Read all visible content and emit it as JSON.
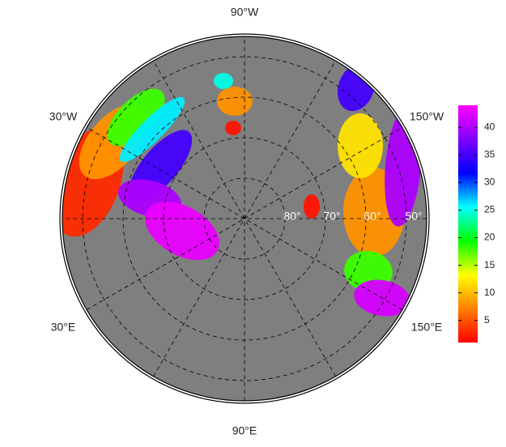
{
  "map": {
    "longitude_labels": [
      "90°W",
      "30°W",
      "150°W",
      "30°E",
      "150°E",
      "90°E"
    ],
    "latitude_labels": [
      "80°",
      "70°",
      "60°",
      "50°"
    ],
    "land_color": "#7f7f7f",
    "field_values": [
      3,
      8,
      18,
      26,
      35,
      40,
      43,
      8,
      12,
      40,
      35,
      18,
      42,
      2,
      8,
      2,
      25
    ],
    "colorbar": {
      "lim": [
        1,
        44
      ],
      "ticks": [
        5,
        10,
        15,
        20,
        25,
        30,
        35,
        40
      ],
      "colormap": [
        "#ff0000",
        "#ff8000",
        "#ffff00",
        "#00ff00",
        "#00ffff",
        "#0000ff",
        "#8000ff",
        "#ff00ff"
      ]
    }
  }
}
